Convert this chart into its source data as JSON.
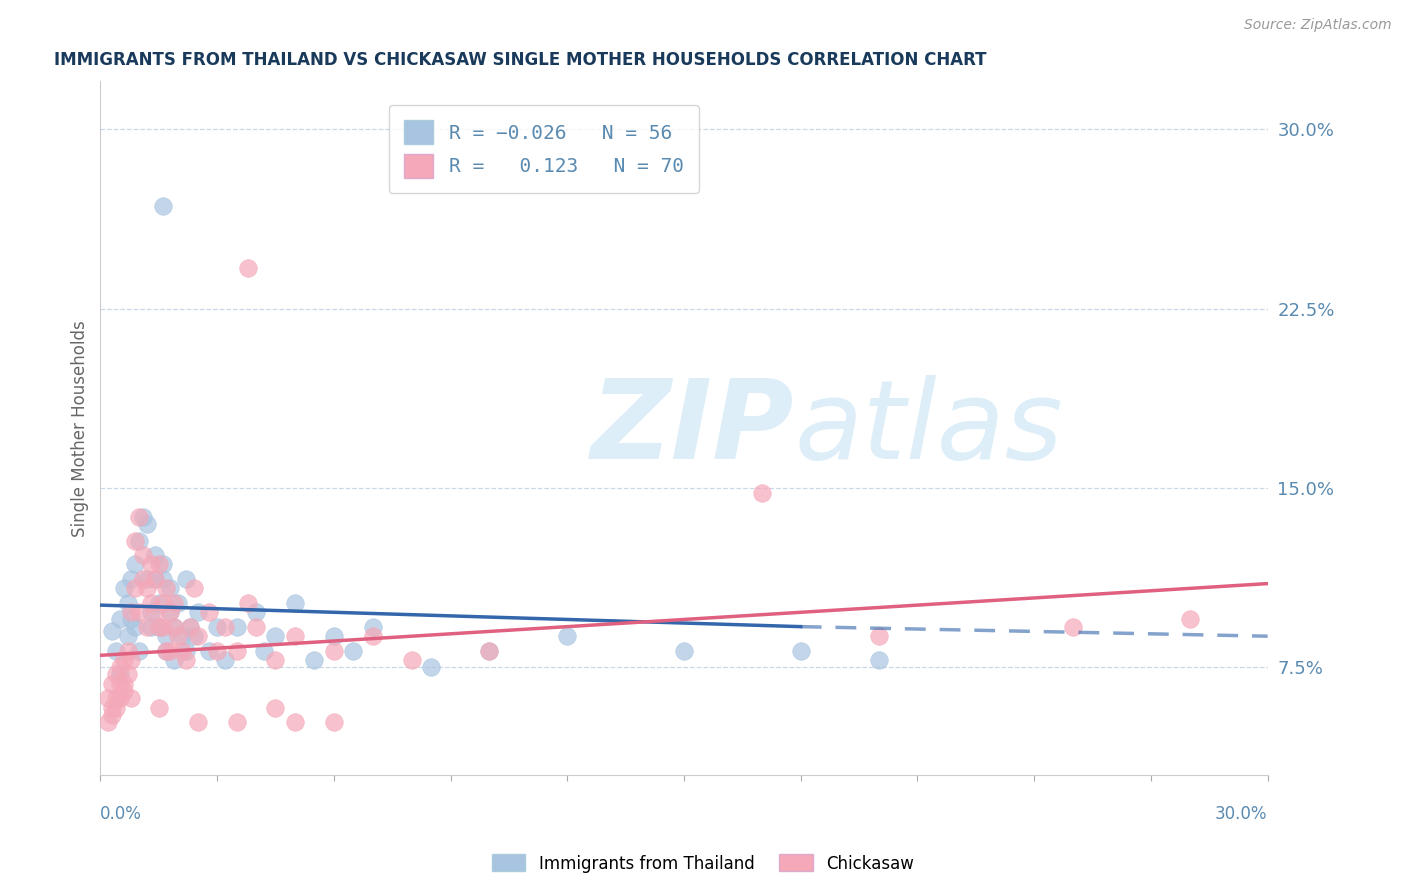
{
  "title": "IMMIGRANTS FROM THAILAND VS CHICKASAW SINGLE MOTHER HOUSEHOLDS CORRELATION CHART",
  "source_text": "Source: ZipAtlas.com",
  "ylabel": "Single Mother Households",
  "yticks": [
    "7.5%",
    "15.0%",
    "22.5%",
    "30.0%"
  ],
  "ytick_vals": [
    0.075,
    0.15,
    0.225,
    0.3
  ],
  "xlim": [
    0.0,
    0.3
  ],
  "ylim": [
    0.03,
    0.32
  ],
  "title_color": "#1a3a5c",
  "tick_color": "#5a8ab0",
  "grid_color": "#c8d8e8",
  "blue_color": "#a8c4e0",
  "pink_color": "#f4a8b8",
  "blue_line_color": "#3366aa",
  "pink_line_color": "#e06080",
  "blue_scatter": [
    [
      0.003,
      0.09
    ],
    [
      0.004,
      0.082
    ],
    [
      0.005,
      0.095
    ],
    [
      0.005,
      0.072
    ],
    [
      0.006,
      0.108
    ],
    [
      0.007,
      0.088
    ],
    [
      0.007,
      0.102
    ],
    [
      0.008,
      0.095
    ],
    [
      0.008,
      0.112
    ],
    [
      0.009,
      0.118
    ],
    [
      0.009,
      0.092
    ],
    [
      0.01,
      0.128
    ],
    [
      0.01,
      0.082
    ],
    [
      0.011,
      0.138
    ],
    [
      0.012,
      0.135
    ],
    [
      0.012,
      0.112
    ],
    [
      0.013,
      0.092
    ],
    [
      0.013,
      0.098
    ],
    [
      0.014,
      0.122
    ],
    [
      0.014,
      0.112
    ],
    [
      0.015,
      0.092
    ],
    [
      0.015,
      0.102
    ],
    [
      0.016,
      0.118
    ],
    [
      0.016,
      0.112
    ],
    [
      0.017,
      0.082
    ],
    [
      0.017,
      0.088
    ],
    [
      0.018,
      0.098
    ],
    [
      0.018,
      0.108
    ],
    [
      0.019,
      0.078
    ],
    [
      0.019,
      0.092
    ],
    [
      0.02,
      0.102
    ],
    [
      0.021,
      0.088
    ],
    [
      0.022,
      0.112
    ],
    [
      0.022,
      0.082
    ],
    [
      0.023,
      0.092
    ],
    [
      0.024,
      0.088
    ],
    [
      0.025,
      0.098
    ],
    [
      0.028,
      0.082
    ],
    [
      0.03,
      0.092
    ],
    [
      0.032,
      0.078
    ],
    [
      0.035,
      0.092
    ],
    [
      0.04,
      0.098
    ],
    [
      0.042,
      0.082
    ],
    [
      0.045,
      0.088
    ],
    [
      0.05,
      0.102
    ],
    [
      0.055,
      0.078
    ],
    [
      0.06,
      0.088
    ],
    [
      0.065,
      0.082
    ],
    [
      0.07,
      0.092
    ],
    [
      0.085,
      0.075
    ],
    [
      0.1,
      0.082
    ],
    [
      0.12,
      0.088
    ],
    [
      0.15,
      0.082
    ],
    [
      0.016,
      0.268
    ],
    [
      0.18,
      0.082
    ],
    [
      0.2,
      0.078
    ]
  ],
  "pink_scatter": [
    [
      0.002,
      0.062
    ],
    [
      0.003,
      0.058
    ],
    [
      0.003,
      0.068
    ],
    [
      0.004,
      0.072
    ],
    [
      0.004,
      0.058
    ],
    [
      0.005,
      0.062
    ],
    [
      0.005,
      0.068
    ],
    [
      0.005,
      0.075
    ],
    [
      0.006,
      0.078
    ],
    [
      0.006,
      0.065
    ],
    [
      0.007,
      0.082
    ],
    [
      0.007,
      0.072
    ],
    [
      0.008,
      0.098
    ],
    [
      0.008,
      0.078
    ],
    [
      0.009,
      0.108
    ],
    [
      0.009,
      0.128
    ],
    [
      0.01,
      0.098
    ],
    [
      0.01,
      0.138
    ],
    [
      0.011,
      0.122
    ],
    [
      0.011,
      0.112
    ],
    [
      0.012,
      0.092
    ],
    [
      0.012,
      0.108
    ],
    [
      0.013,
      0.118
    ],
    [
      0.013,
      0.102
    ],
    [
      0.014,
      0.098
    ],
    [
      0.014,
      0.112
    ],
    [
      0.015,
      0.092
    ],
    [
      0.015,
      0.118
    ],
    [
      0.016,
      0.102
    ],
    [
      0.016,
      0.092
    ],
    [
      0.017,
      0.082
    ],
    [
      0.017,
      0.108
    ],
    [
      0.018,
      0.098
    ],
    [
      0.018,
      0.082
    ],
    [
      0.019,
      0.092
    ],
    [
      0.019,
      0.102
    ],
    [
      0.02,
      0.088
    ],
    [
      0.021,
      0.082
    ],
    [
      0.022,
      0.078
    ],
    [
      0.023,
      0.092
    ],
    [
      0.024,
      0.108
    ],
    [
      0.025,
      0.088
    ],
    [
      0.028,
      0.098
    ],
    [
      0.03,
      0.082
    ],
    [
      0.032,
      0.092
    ],
    [
      0.035,
      0.082
    ],
    [
      0.038,
      0.102
    ],
    [
      0.04,
      0.092
    ],
    [
      0.045,
      0.078
    ],
    [
      0.05,
      0.088
    ],
    [
      0.06,
      0.082
    ],
    [
      0.07,
      0.088
    ],
    [
      0.08,
      0.078
    ],
    [
      0.038,
      0.242
    ],
    [
      0.1,
      0.082
    ],
    [
      0.17,
      0.148
    ],
    [
      0.008,
      0.062
    ],
    [
      0.05,
      0.052
    ],
    [
      0.25,
      0.092
    ],
    [
      0.2,
      0.088
    ],
    [
      0.006,
      0.068
    ],
    [
      0.004,
      0.062
    ],
    [
      0.003,
      0.055
    ],
    [
      0.002,
      0.052
    ],
    [
      0.025,
      0.052
    ],
    [
      0.015,
      0.058
    ],
    [
      0.035,
      0.052
    ],
    [
      0.045,
      0.058
    ],
    [
      0.06,
      0.052
    ],
    [
      0.28,
      0.095
    ]
  ],
  "blue_line": [
    [
      0.0,
      0.101
    ],
    [
      0.18,
      0.092
    ]
  ],
  "blue_line_dashed": [
    [
      0.18,
      0.092
    ],
    [
      0.3,
      0.088
    ]
  ],
  "pink_line": [
    [
      0.0,
      0.08
    ],
    [
      0.3,
      0.11
    ]
  ]
}
